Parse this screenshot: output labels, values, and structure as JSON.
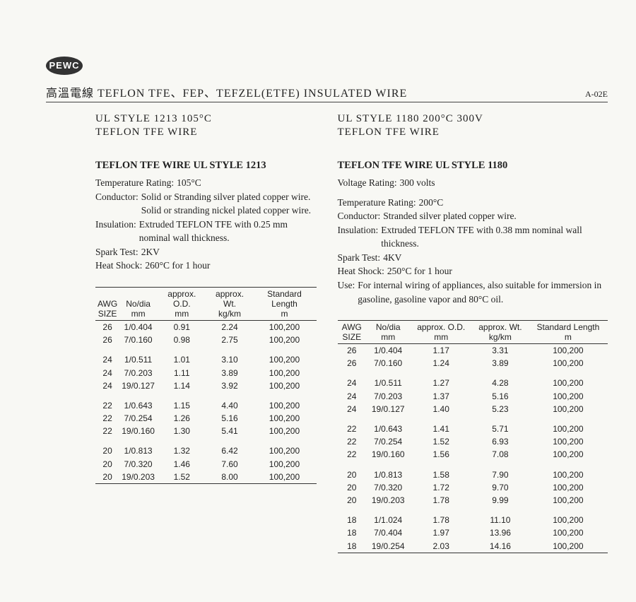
{
  "logo": "PEWC",
  "header": {
    "title": "高溫電線 TEFLON TFE、FEP、TEFZEL(ETFE) INSULATED WIRE",
    "code": "A-02E"
  },
  "left": {
    "heading1": "UL STYLE 1213 105°C",
    "heading2": "TEFLON TFE WIRE",
    "title": "TEFLON TFE WIRE UL STYLE 1213",
    "specs": [
      {
        "label": "Temperature Rating:",
        "val": "105°C"
      },
      {
        "label": "Conductor:",
        "val": "Solid or Stranding silver plated copper wire. Solid or stranding nickel plated copper wire."
      },
      {
        "label": "Insulation:",
        "val": "Extruded TEFLON TFE with 0.25 mm nominal wall thickness."
      },
      {
        "label": "Spark Test:",
        "val": "2KV"
      },
      {
        "label": "Heat Shock:",
        "val": "260°C for 1 hour"
      }
    ],
    "table": {
      "columns": [
        {
          "l1": "AWG",
          "l2": "SIZE"
        },
        {
          "l1": "No/dia",
          "l2": "mm"
        },
        {
          "l1": "approx. O.D.",
          "l2": "mm"
        },
        {
          "l1": "approx. Wt.",
          "l2": "kg/km"
        },
        {
          "l1": "Standard Length",
          "l2": "m"
        }
      ],
      "groups": [
        [
          [
            "26",
            "1/0.404",
            "0.91",
            "2.24",
            "100,200"
          ],
          [
            "26",
            "7/0.160",
            "0.98",
            "2.75",
            "100,200"
          ]
        ],
        [
          [
            "24",
            "1/0.511",
            "1.01",
            "3.10",
            "100,200"
          ],
          [
            "24",
            "7/0.203",
            "1.11",
            "3.89",
            "100,200"
          ],
          [
            "24",
            "19/0.127",
            "1.14",
            "3.92",
            "100,200"
          ]
        ],
        [
          [
            "22",
            "1/0.643",
            "1.15",
            "4.40",
            "100,200"
          ],
          [
            "22",
            "7/0.254",
            "1.26",
            "5.16",
            "100,200"
          ],
          [
            "22",
            "19/0.160",
            "1.30",
            "5.41",
            "100,200"
          ]
        ],
        [
          [
            "20",
            "1/0.813",
            "1.32",
            "6.42",
            "100,200"
          ],
          [
            "20",
            "7/0.320",
            "1.46",
            "7.60",
            "100,200"
          ],
          [
            "20",
            "19/0.203",
            "1.52",
            "8.00",
            "100,200"
          ]
        ]
      ]
    }
  },
  "right": {
    "heading1": "UL STYLE 1180 200°C 300V",
    "heading2": "TEFLON TFE WIRE",
    "title": "TEFLON TFE WIRE UL STYLE 1180",
    "specs": [
      {
        "label": "Voltage Rating:",
        "val": "300 volts"
      },
      {
        "label": "Temperature Rating:",
        "val": "200°C"
      },
      {
        "label": "Conductor:",
        "val": "Stranded silver plated copper wire."
      },
      {
        "label": "Insulation:",
        "val": "Extruded TEFLON TFE with 0.38 mm nominal wall thickness."
      },
      {
        "label": "Spark Test:",
        "val": "4KV"
      },
      {
        "label": "Heat Shock:",
        "val": "250°C for 1 hour"
      },
      {
        "label": "Use:",
        "val": "For internal wiring of appliances, also suitable for immersion in gasoline, gasoline vapor and 80°C oil."
      }
    ],
    "table": {
      "columns": [
        {
          "l1": "AWG",
          "l2": "SIZE"
        },
        {
          "l1": "No/dia",
          "l2": "mm"
        },
        {
          "l1": "approx. O.D.",
          "l2": "mm"
        },
        {
          "l1": "approx. Wt.",
          "l2": "kg/km"
        },
        {
          "l1": "Standard Length",
          "l2": "m"
        }
      ],
      "groups": [
        [
          [
            "26",
            "1/0.404",
            "1.17",
            "3.31",
            "100,200"
          ],
          [
            "26",
            "7/0.160",
            "1.24",
            "3.89",
            "100,200"
          ]
        ],
        [
          [
            "24",
            "1/0.511",
            "1.27",
            "4.28",
            "100,200"
          ],
          [
            "24",
            "7/0.203",
            "1.37",
            "5.16",
            "100,200"
          ],
          [
            "24",
            "19/0.127",
            "1.40",
            "5.23",
            "100,200"
          ]
        ],
        [
          [
            "22",
            "1/0.643",
            "1.41",
            "5.71",
            "100,200"
          ],
          [
            "22",
            "7/0.254",
            "1.52",
            "6.93",
            "100,200"
          ],
          [
            "22",
            "19/0.160",
            "1.56",
            "7.08",
            "100,200"
          ]
        ],
        [
          [
            "20",
            "1/0.813",
            "1.58",
            "7.90",
            "100,200"
          ],
          [
            "20",
            "7/0.320",
            "1.72",
            "9.70",
            "100,200"
          ],
          [
            "20",
            "19/0.203",
            "1.78",
            "9.99",
            "100,200"
          ]
        ],
        [
          [
            "18",
            "1/1.024",
            "1.78",
            "11.10",
            "100,200"
          ],
          [
            "18",
            "7/0.404",
            "1.97",
            "13.96",
            "100,200"
          ],
          [
            "18",
            "19/0.254",
            "2.03",
            "14.16",
            "100,200"
          ]
        ]
      ]
    }
  }
}
